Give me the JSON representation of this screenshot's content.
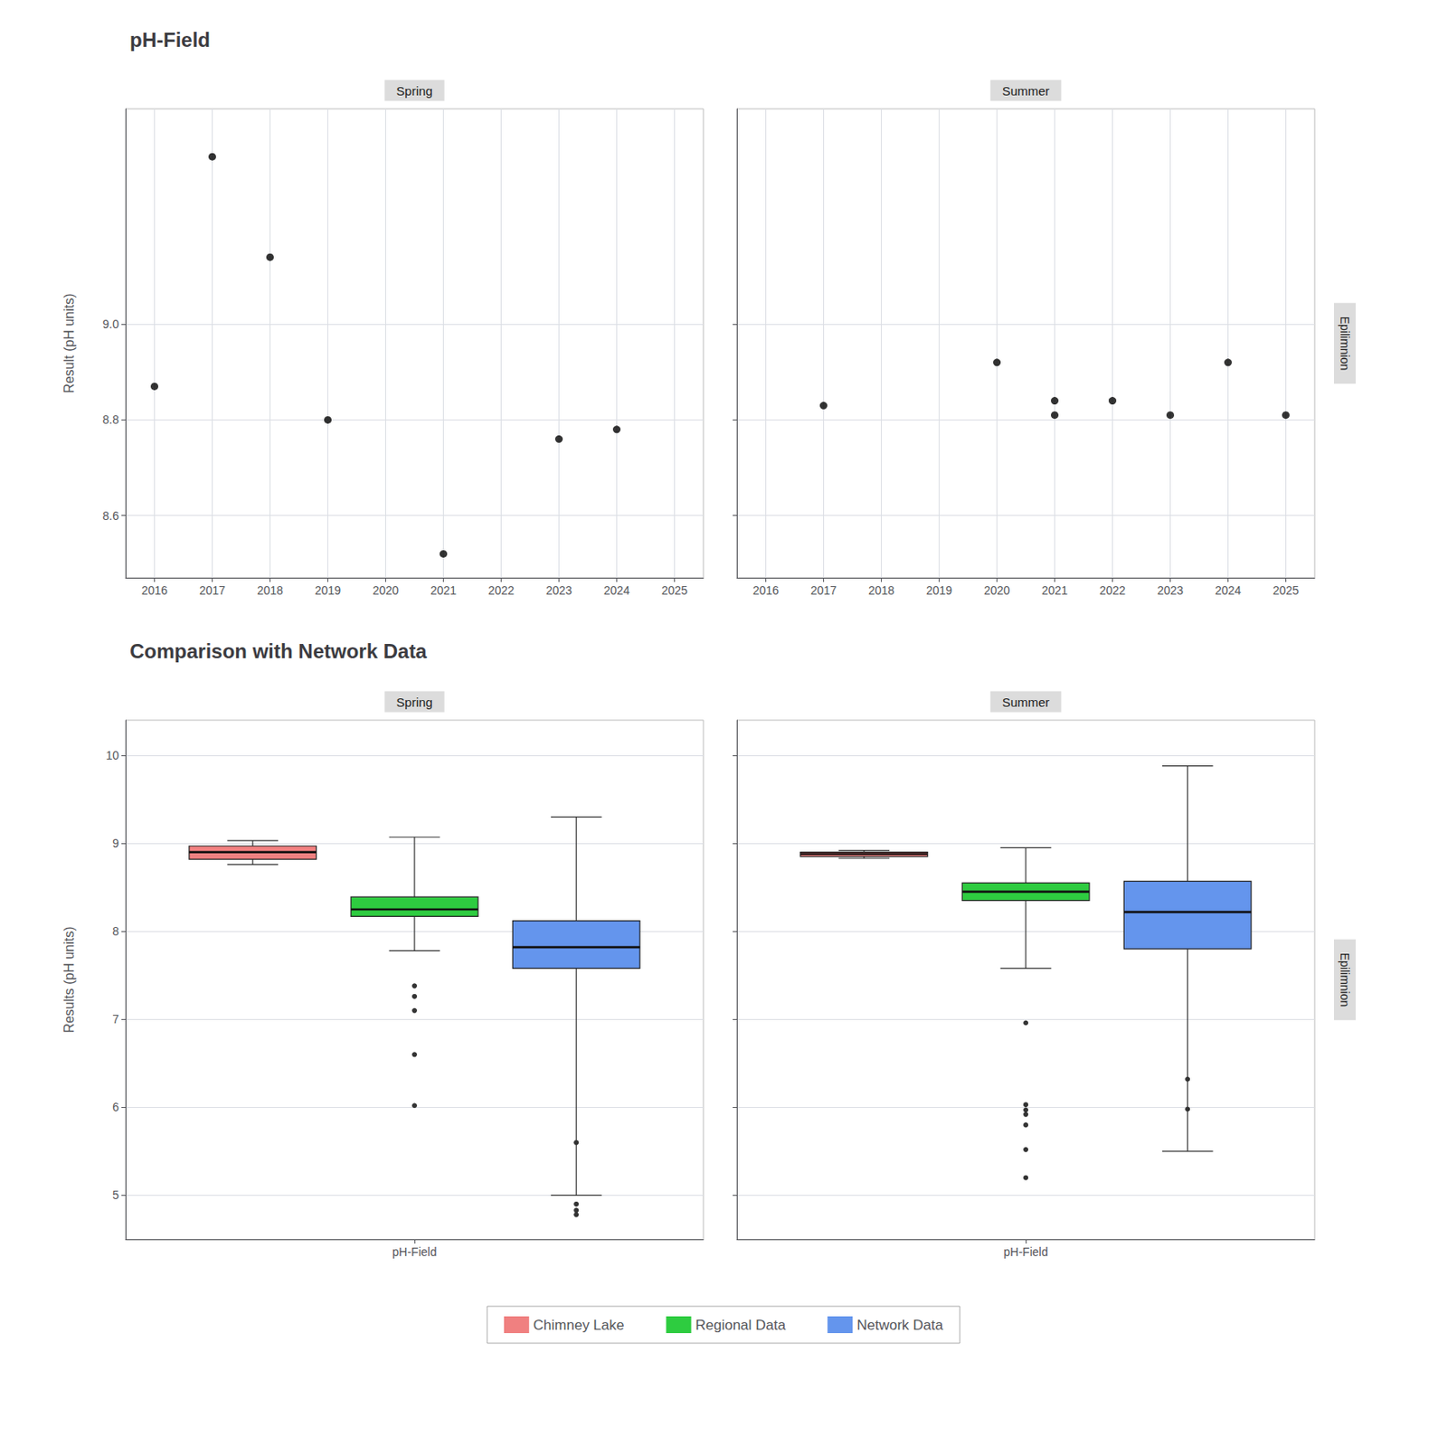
{
  "chart_data": [
    {
      "type": "scatter",
      "title": "pH-Field",
      "subtitle": "Spring",
      "x": [
        2016,
        2017,
        2018,
        2019,
        2021,
        2023,
        2024
      ],
      "values": [
        8.87,
        9.35,
        9.14,
        8.8,
        8.52,
        8.76,
        8.78
      ],
      "color": "black",
      "xlim": [
        2015.5,
        2025.5
      ],
      "xticks": [
        2016,
        2017,
        2018,
        2019,
        2020,
        2021,
        2022,
        2023,
        2024,
        2025
      ],
      "ylim": [
        8.47,
        9.45
      ],
      "yticks": [
        8.6,
        8.8,
        {
          "value": 9.0,
          "label": "9.0"
        }
      ],
      "ylabel": "Result (pH units)",
      "grid": true
    },
    {
      "type": "scatter",
      "subtitle": "Summer",
      "annotations": [
        "Epilimnion"
      ],
      "x": [
        2017,
        2020,
        2021,
        2021,
        2022,
        2023,
        2024,
        2025
      ],
      "values": [
        8.83,
        8.92,
        8.84,
        8.81,
        8.84,
        8.81,
        8.92,
        8.81
      ],
      "color": "black",
      "xlim": [
        2015.5,
        2025.5
      ],
      "xticks": [
        2016,
        2017,
        2018,
        2019,
        2020,
        2021,
        2022,
        2023,
        2024,
        2025
      ],
      "ylim": [
        8.47,
        9.45
      ],
      "yticks": [
        8.6,
        8.8,
        {
          "value": 9.0,
          "label": "9.0"
        }
      ],
      "grid": true,
      "tick_labels": "x"
    },
    {
      "type": "box",
      "title": "Comparison with Network Data",
      "subtitle": "Spring",
      "categories": [
        "pH-Field"
      ],
      "series": [
        {
          "name": "Chimney Lake",
          "color": "#F08080",
          "values": [
            {
              "whisker_lo": 8.76,
              "q1": 8.82,
              "median": 8.9,
              "q3": 8.97,
              "whisker_hi": 9.03,
              "outliers": []
            }
          ]
        },
        {
          "name": "Regional Data",
          "color": "#2ECC40",
          "values": [
            {
              "whisker_lo": 7.78,
              "q1": 8.17,
              "median": 8.25,
              "q3": 8.39,
              "whisker_hi": 9.07,
              "outliers": [
                7.38,
                7.26,
                7.1,
                6.6,
                6.02
              ]
            }
          ]
        },
        {
          "name": "Network Data",
          "color": "#6495ED",
          "values": [
            {
              "whisker_lo": 5.0,
              "q1": 7.58,
              "median": 7.82,
              "q3": 8.12,
              "whisker_hi": 9.3,
              "outliers": [
                5.6,
                4.9,
                4.83,
                4.78
              ]
            }
          ]
        }
      ],
      "ylim": [
        4.5,
        10.4
      ],
      "yticks": [
        5,
        6,
        7,
        8,
        9,
        10
      ],
      "ylabel": "Results (pH units)",
      "grid": "y",
      "legend": "bottom"
    },
    {
      "type": "box",
      "subtitle": "Summer",
      "annotations": [
        "Epilimnion"
      ],
      "categories": [
        "pH-Field"
      ],
      "series": [
        {
          "name": "Chimney Lake",
          "color": "#F08080",
          "values": [
            {
              "whisker_lo": 8.83,
              "q1": 8.85,
              "median": 8.88,
              "q3": 8.9,
              "whisker_hi": 8.92,
              "outliers": []
            }
          ]
        },
        {
          "name": "Regional Data",
          "color": "#2ECC40",
          "values": [
            {
              "whisker_lo": 7.58,
              "q1": 8.35,
              "median": 8.45,
              "q3": 8.55,
              "whisker_hi": 8.95,
              "outliers": [
                6.96,
                6.03,
                5.97,
                5.92,
                5.8,
                5.52,
                5.2
              ]
            }
          ]
        },
        {
          "name": "Network Data",
          "color": "#6495ED",
          "values": [
            {
              "whisker_lo": 5.5,
              "q1": 7.8,
              "median": 8.22,
              "q3": 8.57,
              "whisker_hi": 9.88,
              "outliers": [
                6.32,
                5.98
              ]
            }
          ]
        }
      ],
      "ylim": [
        4.5,
        10.4
      ],
      "yticks": [
        5,
        6,
        7,
        8,
        9,
        10
      ],
      "grid": "y",
      "legend": "bottom",
      "tick_labels": "x"
    }
  ]
}
